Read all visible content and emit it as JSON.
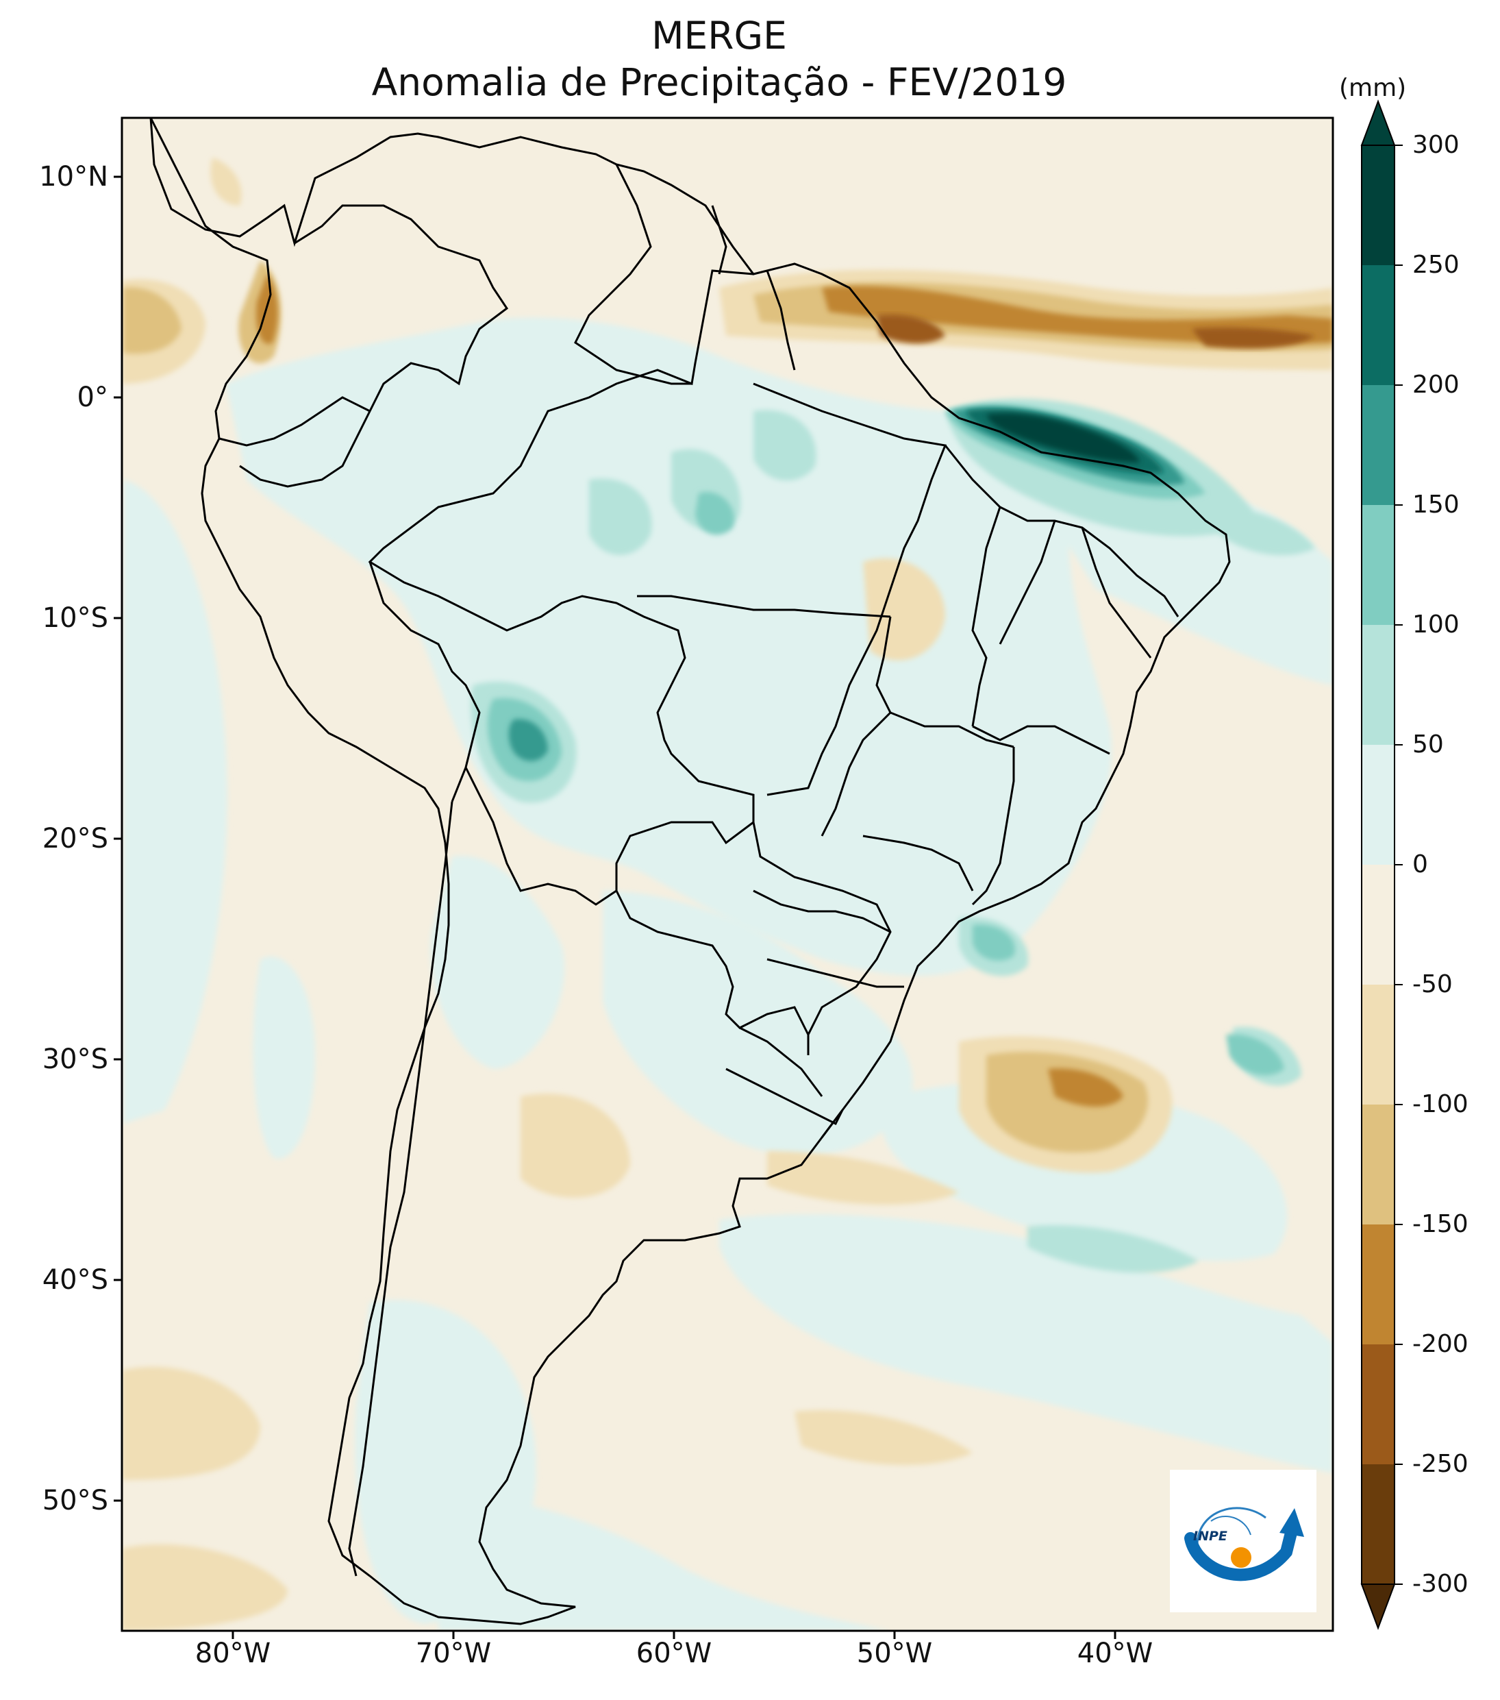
{
  "titles": {
    "line1": "MERGE",
    "line2": "Anomalia de Precipitação - FEV/2019"
  },
  "map": {
    "variable": "Anomalia de Precipitação",
    "source": "MERGE",
    "period": "FEV/2019",
    "lat_ticks": [
      "10°N",
      "0°",
      "10°S",
      "20°S",
      "30°S",
      "40°S",
      "50°S"
    ],
    "lon_ticks": [
      "80°W",
      "70°W",
      "60°W",
      "50°W",
      "40°W"
    ],
    "colors": {
      "land_base": "#f5efe0",
      "border": "#000000"
    }
  },
  "colorbar": {
    "unit": "(mm)",
    "levels": [
      "300",
      "250",
      "200",
      "150",
      "100",
      "50",
      "0",
      "-50",
      "-100",
      "-150",
      "-200",
      "-250",
      "-300"
    ],
    "colors": [
      "#01423a",
      "#0c6d63",
      "#359a8f",
      "#80cdc1",
      "#b5e3da",
      "#e0f2ef",
      "#f5efe0",
      "#f0deb5",
      "#dfc17f",
      "#c08531",
      "#9b5a1a",
      "#6a3d0c",
      "#4b2a07"
    ]
  },
  "logo": {
    "text": "INPE"
  }
}
